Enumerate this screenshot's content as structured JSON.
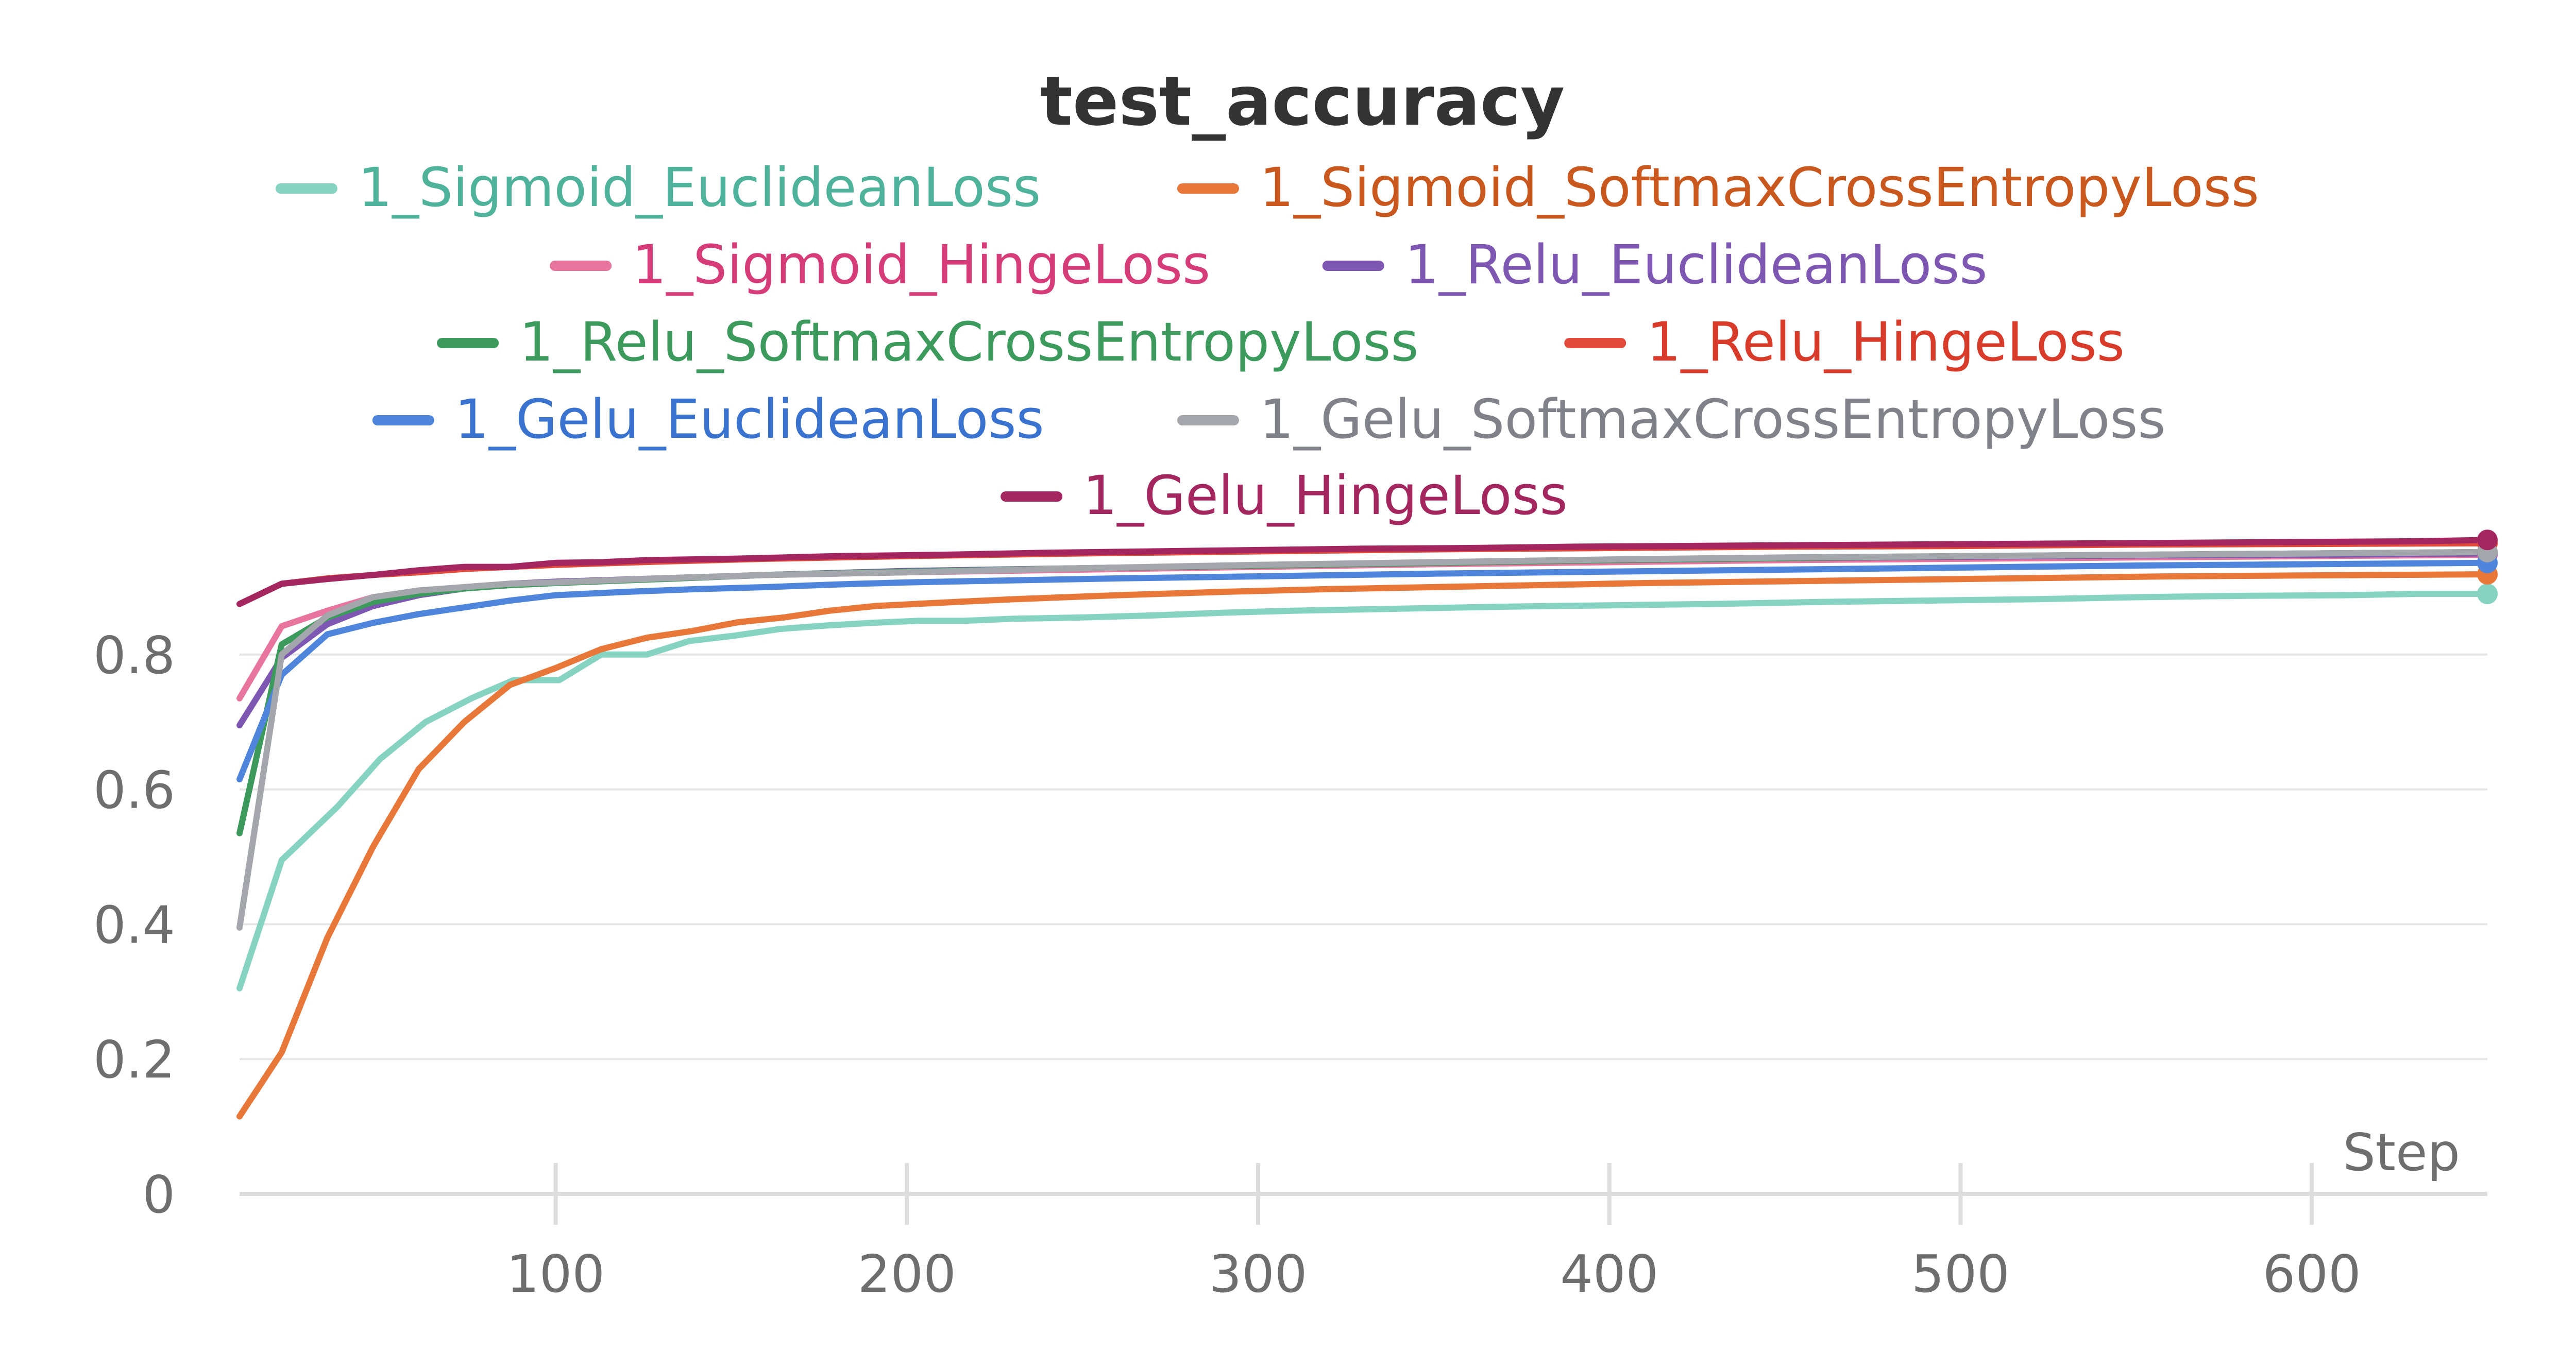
{
  "chart_data": {
    "type": "line",
    "title": "test_accuracy",
    "xlabel": "Step",
    "ylabel": "",
    "xlim": [
      10,
      650
    ],
    "ylim": [
      0,
      1
    ],
    "xticks": [
      100,
      200,
      300,
      400,
      500,
      600
    ],
    "yticks": [
      0,
      0.2,
      0.4,
      0.6,
      0.8
    ],
    "ytick_labels": [
      "0",
      "0.2",
      "0.4",
      "0.6",
      "0.8"
    ],
    "grid": "horizontal",
    "legend": "top",
    "series": [
      {
        "name": "1_Sigmoid_EuclideanLoss",
        "color": "#86d3c1",
        "text_color": "#4fb39c",
        "points": [
          [
            10,
            0.305
          ],
          [
            22,
            0.495
          ],
          [
            38,
            0.575
          ],
          [
            50,
            0.645
          ],
          [
            63,
            0.7
          ],
          [
            76,
            0.735
          ],
          [
            88,
            0.762
          ],
          [
            101,
            0.762
          ],
          [
            113,
            0.8
          ],
          [
            126,
            0.8
          ],
          [
            138,
            0.82
          ],
          [
            151,
            0.828
          ],
          [
            164,
            0.838
          ],
          [
            177,
            0.843
          ],
          [
            190,
            0.847
          ],
          [
            203,
            0.85
          ],
          [
            216,
            0.85
          ],
          [
            230,
            0.853
          ],
          [
            250,
            0.855
          ],
          [
            270,
            0.858
          ],
          [
            290,
            0.862
          ],
          [
            310,
            0.865
          ],
          [
            330,
            0.867
          ],
          [
            350,
            0.869
          ],
          [
            370,
            0.871
          ],
          [
            400,
            0.873
          ],
          [
            430,
            0.875
          ],
          [
            460,
            0.878
          ],
          [
            490,
            0.88
          ],
          [
            520,
            0.882
          ],
          [
            550,
            0.885
          ],
          [
            580,
            0.887
          ],
          [
            610,
            0.888
          ],
          [
            630,
            0.89
          ],
          [
            650,
            0.89
          ]
        ]
      },
      {
        "name": "1_Sigmoid_SoftmaxCrossEntropyLoss",
        "color": "#e8773a",
        "text_color": "#c9581f",
        "points": [
          [
            10,
            0.115
          ],
          [
            22,
            0.21
          ],
          [
            35,
            0.38
          ],
          [
            48,
            0.515
          ],
          [
            61,
            0.63
          ],
          [
            74,
            0.7
          ],
          [
            87,
            0.755
          ],
          [
            100,
            0.78
          ],
          [
            113,
            0.808
          ],
          [
            126,
            0.825
          ],
          [
            139,
            0.835
          ],
          [
            152,
            0.848
          ],
          [
            165,
            0.855
          ],
          [
            178,
            0.865
          ],
          [
            191,
            0.872
          ],
          [
            210,
            0.877
          ],
          [
            230,
            0.882
          ],
          [
            260,
            0.888
          ],
          [
            290,
            0.893
          ],
          [
            320,
            0.897
          ],
          [
            350,
            0.9
          ],
          [
            380,
            0.903
          ],
          [
            410,
            0.906
          ],
          [
            440,
            0.908
          ],
          [
            470,
            0.91
          ],
          [
            500,
            0.912
          ],
          [
            530,
            0.914
          ],
          [
            560,
            0.916
          ],
          [
            590,
            0.917
          ],
          [
            620,
            0.918
          ],
          [
            650,
            0.919
          ]
        ]
      },
      {
        "name": "1_Sigmoid_HingeLoss",
        "color": "#e8759e",
        "text_color": "#d63c78",
        "points": [
          [
            10,
            0.735
          ],
          [
            22,
            0.842
          ],
          [
            35,
            0.865
          ],
          [
            48,
            0.885
          ],
          [
            61,
            0.893
          ],
          [
            74,
            0.9
          ],
          [
            87,
            0.905
          ],
          [
            100,
            0.908
          ],
          [
            130,
            0.912
          ],
          [
            160,
            0.918
          ],
          [
            200,
            0.922
          ],
          [
            250,
            0.926
          ],
          [
            300,
            0.93
          ],
          [
            350,
            0.934
          ],
          [
            400,
            0.937
          ],
          [
            450,
            0.94
          ],
          [
            500,
            0.942
          ],
          [
            550,
            0.944
          ],
          [
            600,
            0.946
          ],
          [
            650,
            0.948
          ]
        ]
      },
      {
        "name": "1_Relu_EuclideanLoss",
        "color": "#7e57b3",
        "text_color": "#7e57b3",
        "points": [
          [
            10,
            0.695
          ],
          [
            22,
            0.795
          ],
          [
            35,
            0.845
          ],
          [
            48,
            0.872
          ],
          [
            61,
            0.888
          ],
          [
            74,
            0.898
          ],
          [
            87,
            0.905
          ],
          [
            100,
            0.908
          ],
          [
            130,
            0.913
          ],
          [
            160,
            0.918
          ],
          [
            200,
            0.924
          ],
          [
            250,
            0.928
          ],
          [
            300,
            0.932
          ],
          [
            350,
            0.936
          ],
          [
            400,
            0.94
          ],
          [
            450,
            0.943
          ],
          [
            500,
            0.945
          ],
          [
            550,
            0.947
          ],
          [
            600,
            0.948
          ],
          [
            650,
            0.95
          ]
        ]
      },
      {
        "name": "1_Relu_SoftmaxCrossEntropyLoss",
        "color": "#3c9a5c",
        "text_color": "#3c9a5c",
        "points": [
          [
            10,
            0.535
          ],
          [
            22,
            0.815
          ],
          [
            35,
            0.855
          ],
          [
            48,
            0.878
          ],
          [
            61,
            0.89
          ],
          [
            74,
            0.898
          ],
          [
            87,
            0.903
          ],
          [
            100,
            0.906
          ],
          [
            130,
            0.912
          ],
          [
            160,
            0.918
          ],
          [
            200,
            0.923
          ],
          [
            250,
            0.928
          ],
          [
            300,
            0.932
          ],
          [
            350,
            0.936
          ],
          [
            400,
            0.94
          ],
          [
            450,
            0.943
          ],
          [
            500,
            0.946
          ],
          [
            550,
            0.948
          ],
          [
            600,
            0.95
          ],
          [
            650,
            0.952
          ]
        ]
      },
      {
        "name": "1_Relu_HingeLoss",
        "color": "#e24b3b",
        "text_color": "#d93b2b",
        "points": [
          [
            10,
            0.875
          ],
          [
            22,
            0.905
          ],
          [
            35,
            0.913
          ],
          [
            48,
            0.918
          ],
          [
            61,
            0.922
          ],
          [
            74,
            0.927
          ],
          [
            87,
            0.93
          ],
          [
            100,
            0.933
          ],
          [
            130,
            0.938
          ],
          [
            160,
            0.942
          ],
          [
            200,
            0.946
          ],
          [
            250,
            0.95
          ],
          [
            300,
            0.953
          ],
          [
            350,
            0.956
          ],
          [
            400,
            0.958
          ],
          [
            450,
            0.96
          ],
          [
            500,
            0.961
          ],
          [
            550,
            0.963
          ],
          [
            600,
            0.964
          ],
          [
            650,
            0.965
          ]
        ]
      },
      {
        "name": "1_Gelu_EuclideanLoss",
        "color": "#4f86dc",
        "text_color": "#3a73cf",
        "points": [
          [
            10,
            0.615
          ],
          [
            22,
            0.77
          ],
          [
            35,
            0.83
          ],
          [
            48,
            0.847
          ],
          [
            61,
            0.86
          ],
          [
            74,
            0.87
          ],
          [
            87,
            0.88
          ],
          [
            100,
            0.888
          ],
          [
            120,
            0.893
          ],
          [
            140,
            0.897
          ],
          [
            160,
            0.9
          ],
          [
            180,
            0.904
          ],
          [
            200,
            0.907
          ],
          [
            230,
            0.91
          ],
          [
            260,
            0.913
          ],
          [
            300,
            0.916
          ],
          [
            350,
            0.92
          ],
          [
            400,
            0.923
          ],
          [
            450,
            0.926
          ],
          [
            500,
            0.929
          ],
          [
            550,
            0.932
          ],
          [
            600,
            0.934
          ],
          [
            650,
            0.936
          ]
        ]
      },
      {
        "name": "1_Gelu_SoftmaxCrossEntropyLoss",
        "color": "#a3a6ab",
        "text_color": "#7f8389",
        "points": [
          [
            10,
            0.395
          ],
          [
            22,
            0.8
          ],
          [
            35,
            0.858
          ],
          [
            48,
            0.885
          ],
          [
            61,
            0.895
          ],
          [
            74,
            0.9
          ],
          [
            87,
            0.905
          ],
          [
            100,
            0.907
          ],
          [
            130,
            0.913
          ],
          [
            160,
            0.918
          ],
          [
            200,
            0.922
          ],
          [
            250,
            0.928
          ],
          [
            300,
            0.933
          ],
          [
            350,
            0.937
          ],
          [
            400,
            0.941
          ],
          [
            450,
            0.944
          ],
          [
            500,
            0.946
          ],
          [
            550,
            0.948
          ],
          [
            600,
            0.95
          ],
          [
            650,
            0.952
          ]
        ]
      },
      {
        "name": "1_Gelu_HingeLoss",
        "color": "#a3275e",
        "text_color": "#a3275e",
        "points": [
          [
            10,
            0.875
          ],
          [
            22,
            0.905
          ],
          [
            35,
            0.912
          ],
          [
            48,
            0.918
          ],
          [
            61,
            0.925
          ],
          [
            74,
            0.93
          ],
          [
            87,
            0.93
          ],
          [
            100,
            0.936
          ],
          [
            113,
            0.937
          ],
          [
            126,
            0.94
          ],
          [
            150,
            0.942
          ],
          [
            180,
            0.946
          ],
          [
            210,
            0.948
          ],
          [
            240,
            0.951
          ],
          [
            270,
            0.953
          ],
          [
            300,
            0.955
          ],
          [
            330,
            0.957
          ],
          [
            360,
            0.958
          ],
          [
            390,
            0.96
          ],
          [
            420,
            0.961
          ],
          [
            450,
            0.962
          ],
          [
            480,
            0.963
          ],
          [
            510,
            0.964
          ],
          [
            540,
            0.965
          ],
          [
            570,
            0.966
          ],
          [
            600,
            0.967
          ],
          [
            630,
            0.968
          ],
          [
            650,
            0.97
          ]
        ]
      }
    ]
  }
}
